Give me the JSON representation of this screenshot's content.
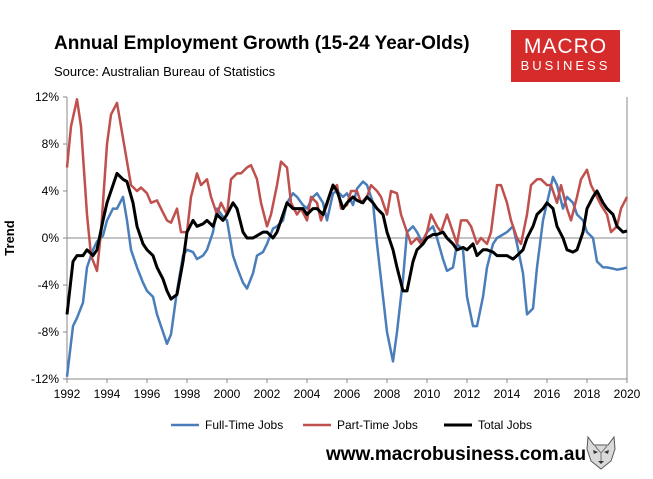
{
  "header": {
    "title": "Annual Employment Growth (15-24 Year-Olds)",
    "source": "Source: Australian Bureau of Statistics"
  },
  "logo": {
    "line1": "MACRO",
    "line2": "BUSINESS",
    "color": "#d62b2b"
  },
  "footer": {
    "website": "www.macrobusiness.com.au",
    "mascot_icon": "wolf-icon"
  },
  "chart_data": {
    "type": "line",
    "title": "Annual Employment Growth (15-24 Year-Olds)",
    "ylabel": "Trend",
    "xlabel": "",
    "xlim": [
      1992,
      2020
    ],
    "ylim": [
      -12,
      12
    ],
    "x_ticks": [
      "1992",
      "1994",
      "1996",
      "1998",
      "2000",
      "2002",
      "2004",
      "2006",
      "2008",
      "2010",
      "2012",
      "2014",
      "2016",
      "2018",
      "2020"
    ],
    "y_ticks": [
      "12%",
      "8%",
      "4%",
      "0%",
      "-4%",
      "-8%",
      "-12%"
    ],
    "grid": "none",
    "zero_line": true,
    "legend": "bottom",
    "series": [
      {
        "name": "Full-Time Jobs",
        "color": "#4a7ebb",
        "x": [
          1992.0,
          1992.3,
          1992.5,
          1992.8,
          1993.0,
          1993.3,
          1993.5,
          1993.8,
          1994.0,
          1994.3,
          1994.5,
          1994.8,
          1995.0,
          1995.2,
          1995.5,
          1995.8,
          1996.0,
          1996.3,
          1996.5,
          1996.8,
          1997.0,
          1997.2,
          1997.5,
          1997.8,
          1998.0,
          1998.3,
          1998.5,
          1998.8,
          1999.0,
          1999.3,
          1999.5,
          1999.8,
          2000.0,
          2000.3,
          2000.5,
          2000.8,
          2001.0,
          2001.3,
          2001.5,
          2001.8,
          2002.0,
          2002.3,
          2002.5,
          2002.8,
          2003.0,
          2003.3,
          2003.5,
          2003.8,
          2004.0,
          2004.3,
          2004.5,
          2004.8,
          2005.0,
          2005.3,
          2005.5,
          2005.8,
          2006.0,
          2006.3,
          2006.5,
          2006.8,
          2007.0,
          2007.3,
          2007.5,
          2007.8,
          2008.0,
          2008.3,
          2008.5,
          2008.8,
          2009.0,
          2009.3,
          2009.5,
          2009.8,
          2010.0,
          2010.3,
          2010.5,
          2010.8,
          2011.0,
          2011.3,
          2011.5,
          2011.8,
          2012.0,
          2012.3,
          2012.5,
          2012.8,
          2013.0,
          2013.3,
          2013.5,
          2013.8,
          2014.0,
          2014.3,
          2014.5,
          2014.8,
          2015.0,
          2015.3,
          2015.5,
          2015.8,
          2016.0,
          2016.3,
          2016.5,
          2016.8,
          2017.0,
          2017.3,
          2017.5,
          2017.8,
          2018.0,
          2018.3,
          2018.5,
          2018.8,
          2019.0,
          2019.3,
          2019.5,
          2019.8,
          2020.0
        ],
        "values": [
          -11.8,
          -7.5,
          -6.8,
          -5.5,
          -2.5,
          -1.0,
          -0.3,
          0.2,
          1.5,
          2.5,
          2.5,
          3.5,
          1.5,
          -1.0,
          -2.5,
          -3.8,
          -4.5,
          -5.0,
          -6.5,
          -8.0,
          -9.0,
          -8.2,
          -4.5,
          -1.5,
          -1.0,
          -1.2,
          -1.8,
          -1.5,
          -1.0,
          0.5,
          2.5,
          1.8,
          1.5,
          -1.5,
          -2.5,
          -3.8,
          -4.3,
          -3.0,
          -1.5,
          -1.2,
          -0.5,
          0.8,
          1.0,
          1.5,
          3.0,
          3.8,
          3.5,
          2.8,
          2.5,
          3.5,
          3.8,
          3.0,
          1.5,
          3.8,
          4.0,
          3.5,
          3.8,
          2.8,
          4.2,
          4.8,
          4.5,
          3.0,
          -0.5,
          -5.0,
          -8.0,
          -10.5,
          -8.0,
          -3.5,
          0.5,
          1.0,
          0.5,
          -0.5,
          0.5,
          1.0,
          0.0,
          -1.8,
          -2.8,
          -2.5,
          -0.5,
          -1.0,
          -5.0,
          -7.5,
          -7.5,
          -5.0,
          -2.5,
          -0.5,
          0.0,
          0.3,
          0.5,
          1.0,
          -0.5,
          -3.0,
          -6.5,
          -6.0,
          -2.5,
          1.5,
          3.0,
          5.2,
          4.5,
          2.5,
          3.5,
          3.0,
          2.0,
          1.5,
          0.5,
          0.0,
          -2.0,
          -2.5,
          -2.5,
          -2.6,
          -2.7,
          -2.6,
          -2.5
        ]
      },
      {
        "name": "Part-Time Jobs",
        "color": "#c0504d",
        "x": [
          1992.0,
          1992.2,
          1992.5,
          1992.7,
          1993.0,
          1993.2,
          1993.5,
          1993.7,
          1994.0,
          1994.2,
          1994.5,
          1994.7,
          1995.0,
          1995.2,
          1995.5,
          1995.7,
          1996.0,
          1996.2,
          1996.5,
          1996.7,
          1997.0,
          1997.2,
          1997.5,
          1997.7,
          1998.0,
          1998.2,
          1998.5,
          1998.7,
          1999.0,
          1999.2,
          1999.5,
          1999.7,
          2000.0,
          2000.2,
          2000.5,
          2000.7,
          2001.0,
          2001.2,
          2001.5,
          2001.7,
          2002.0,
          2002.2,
          2002.5,
          2002.7,
          2003.0,
          2003.2,
          2003.5,
          2003.7,
          2004.0,
          2004.2,
          2004.5,
          2004.7,
          2005.0,
          2005.2,
          2005.5,
          2005.7,
          2006.0,
          2006.2,
          2006.5,
          2006.7,
          2007.0,
          2007.2,
          2007.5,
          2007.7,
          2008.0,
          2008.2,
          2008.5,
          2008.7,
          2009.0,
          2009.2,
          2009.5,
          2009.7,
          2010.0,
          2010.2,
          2010.5,
          2010.7,
          2011.0,
          2011.2,
          2011.5,
          2011.7,
          2012.0,
          2012.2,
          2012.5,
          2012.7,
          2013.0,
          2013.2,
          2013.5,
          2013.7,
          2014.0,
          2014.2,
          2014.5,
          2014.7,
          2015.0,
          2015.2,
          2015.5,
          2015.7,
          2016.0,
          2016.2,
          2016.5,
          2016.7,
          2017.0,
          2017.2,
          2017.5,
          2017.7,
          2018.0,
          2018.2,
          2018.5,
          2018.7,
          2019.0,
          2019.2,
          2019.5,
          2019.7,
          2020.0
        ],
        "values": [
          6.0,
          9.5,
          11.8,
          9.5,
          2.0,
          -1.5,
          -2.8,
          0.5,
          8.0,
          10.5,
          11.5,
          9.5,
          6.5,
          4.5,
          4.0,
          4.3,
          3.8,
          3.0,
          3.2,
          2.5,
          1.5,
          1.3,
          2.5,
          0.5,
          0.5,
          3.5,
          5.5,
          4.5,
          5.0,
          3.5,
          2.0,
          3.0,
          2.0,
          5.0,
          5.5,
          5.5,
          6.0,
          6.2,
          5.0,
          3.0,
          1.0,
          2.0,
          4.5,
          6.5,
          6.0,
          3.0,
          2.0,
          2.5,
          1.5,
          3.5,
          3.0,
          1.5,
          2.8,
          4.0,
          4.5,
          2.5,
          2.8,
          4.0,
          4.0,
          3.0,
          3.5,
          4.5,
          4.0,
          3.5,
          2.0,
          4.0,
          3.8,
          2.0,
          0.5,
          -0.5,
          0.0,
          -0.5,
          0.5,
          2.0,
          1.0,
          0.5,
          2.0,
          1.0,
          -0.5,
          1.5,
          1.5,
          1.0,
          -0.5,
          0.0,
          -0.5,
          0.5,
          4.5,
          4.5,
          3.0,
          1.5,
          0.0,
          -0.5,
          2.0,
          4.5,
          5.0,
          5.0,
          4.5,
          4.5,
          3.0,
          4.5,
          2.5,
          1.5,
          3.5,
          5.0,
          5.8,
          4.5,
          3.5,
          2.8,
          2.0,
          0.5,
          1.0,
          2.5,
          3.5
        ]
      },
      {
        "name": "Total Jobs",
        "color": "#000000",
        "x": [
          1992.0,
          1992.3,
          1992.5,
          1992.8,
          1993.0,
          1993.3,
          1993.5,
          1993.8,
          1994.0,
          1994.3,
          1994.5,
          1994.8,
          1995.0,
          1995.3,
          1995.5,
          1995.8,
          1996.0,
          1996.3,
          1996.5,
          1996.8,
          1997.0,
          1997.2,
          1997.5,
          1997.8,
          1998.0,
          1998.3,
          1998.5,
          1998.8,
          1999.0,
          1999.3,
          1999.5,
          1999.8,
          2000.0,
          2000.3,
          2000.5,
          2000.8,
          2001.0,
          2001.3,
          2001.5,
          2001.8,
          2002.0,
          2002.3,
          2002.5,
          2002.8,
          2003.0,
          2003.3,
          2003.5,
          2003.8,
          2004.0,
          2004.3,
          2004.5,
          2004.8,
          2005.0,
          2005.3,
          2005.5,
          2005.8,
          2006.0,
          2006.3,
          2006.5,
          2006.8,
          2007.0,
          2007.3,
          2007.5,
          2007.8,
          2008.0,
          2008.3,
          2008.5,
          2008.8,
          2009.0,
          2009.3,
          2009.5,
          2009.8,
          2010.0,
          2010.3,
          2010.5,
          2010.8,
          2011.0,
          2011.3,
          2011.5,
          2011.8,
          2012.0,
          2012.3,
          2012.5,
          2012.8,
          2013.0,
          2013.3,
          2013.5,
          2013.8,
          2014.0,
          2014.3,
          2014.5,
          2014.8,
          2015.0,
          2015.3,
          2015.5,
          2015.8,
          2016.0,
          2016.3,
          2016.5,
          2016.8,
          2017.0,
          2017.3,
          2017.5,
          2017.8,
          2018.0,
          2018.3,
          2018.5,
          2018.8,
          2019.0,
          2019.3,
          2019.5,
          2019.8,
          2020.0
        ],
        "values": [
          -6.5,
          -2.0,
          -1.5,
          -1.5,
          -1.0,
          -1.5,
          -1.0,
          1.5,
          3.0,
          4.5,
          5.5,
          5.0,
          4.8,
          3.0,
          1.0,
          -0.5,
          -1.0,
          -1.5,
          -2.5,
          -3.5,
          -4.5,
          -5.2,
          -4.8,
          -2.0,
          0.5,
          1.5,
          1.0,
          1.2,
          1.5,
          1.0,
          2.0,
          1.5,
          2.0,
          3.0,
          2.5,
          0.5,
          0.0,
          0.0,
          0.2,
          0.5,
          0.5,
          0.0,
          0.5,
          2.0,
          3.0,
          2.5,
          2.5,
          2.5,
          2.0,
          2.5,
          2.5,
          2.0,
          3.0,
          4.5,
          4.0,
          2.5,
          3.0,
          3.5,
          3.2,
          3.0,
          3.5,
          3.0,
          2.5,
          2.0,
          0.5,
          -1.0,
          -2.5,
          -4.5,
          -4.5,
          -2.0,
          -1.0,
          -0.5,
          0.0,
          0.3,
          0.3,
          0.5,
          0.0,
          -0.5,
          -1.0,
          -0.8,
          -1.0,
          -0.5,
          -1.5,
          -1.0,
          -1.0,
          -1.2,
          -1.5,
          -1.5,
          -1.5,
          -1.8,
          -1.5,
          -1.0,
          0.0,
          1.0,
          2.0,
          2.5,
          3.0,
          2.5,
          1.0,
          0.0,
          -1.0,
          -1.2,
          -1.0,
          0.5,
          2.5,
          3.5,
          4.0,
          3.0,
          2.5,
          2.0,
          1.0,
          0.5,
          0.6
        ]
      }
    ]
  }
}
